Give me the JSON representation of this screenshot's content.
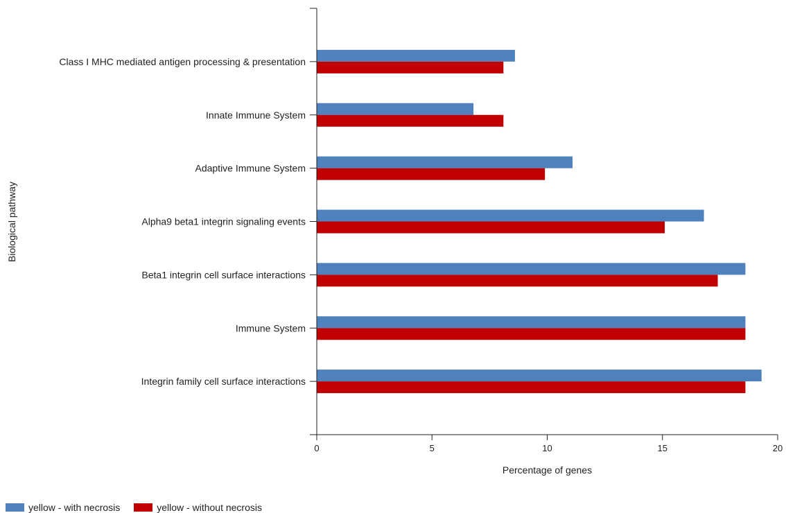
{
  "chart_data": {
    "type": "bar",
    "orientation": "horizontal",
    "categories": [
      "Class I MHC mediated antigen processing & presentation",
      "Innate Immune System",
      "Adaptive Immune System",
      "Alpha9 beta1 integrin signaling events",
      "Beta1 integrin cell surface interactions",
      "Immune System",
      "Integrin family cell surface interactions"
    ],
    "series": [
      {
        "name": "yellow - with necrosis",
        "color": "#4f81bd",
        "values": [
          8.6,
          6.8,
          11.1,
          16.8,
          18.6,
          18.6,
          19.3
        ]
      },
      {
        "name": "yellow - without necrosis",
        "color": "#c00000",
        "values": [
          8.1,
          8.1,
          9.9,
          15.1,
          17.4,
          18.6,
          18.6
        ]
      }
    ],
    "xlabel": "Percentage of genes",
    "ylabel": "Biological pathway",
    "xlim": [
      0,
      20
    ],
    "xticks": [
      "0",
      "5",
      "10",
      "15",
      "20"
    ],
    "grid": false,
    "legend_position": "bottom-left"
  }
}
